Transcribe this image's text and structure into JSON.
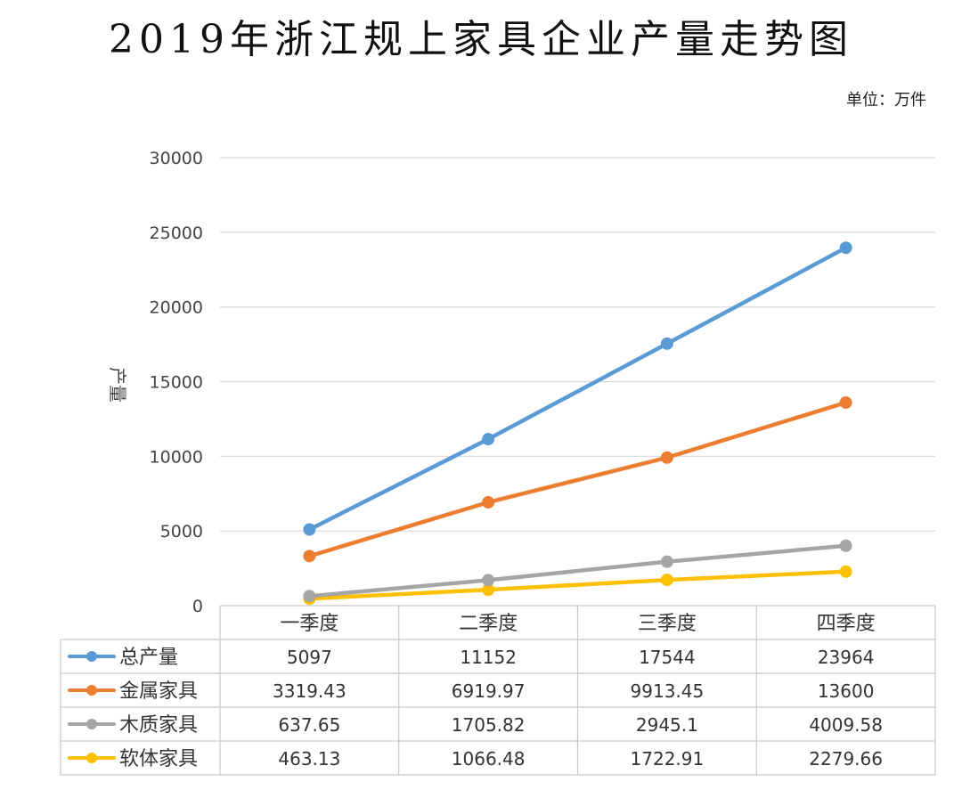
{
  "chart_data": {
    "type": "line",
    "title": "2019年浙江规上家具企业产量走势图",
    "unit_label": "单位：万件",
    "ylabel": "产量",
    "xlabel": "",
    "ylim": [
      0,
      30000
    ],
    "yticks": [
      "0",
      "5000",
      "10000",
      "15000",
      "20000",
      "25000",
      "30000"
    ],
    "ytick_values": [
      0,
      5000,
      10000,
      15000,
      20000,
      25000,
      30000
    ],
    "grid": true,
    "legend": "data-table-left",
    "categories": [
      "一季度",
      "二季度",
      "三季度",
      "四季度"
    ],
    "series": [
      {
        "name": "总产量",
        "color": "#5B9BD5",
        "values": [
          5097,
          11152,
          17544,
          23964
        ],
        "labels": [
          "5097",
          "11152",
          "17544",
          "23964"
        ]
      },
      {
        "name": "金属家具",
        "color": "#ED7D31",
        "values": [
          3319.43,
          6919.97,
          9913.45,
          13600
        ],
        "labels": [
          "3319.43",
          "6919.97",
          "9913.45",
          "13600"
        ]
      },
      {
        "name": "木质家具",
        "color": "#A5A5A5",
        "values": [
          637.65,
          1705.82,
          2945.1,
          4009.58
        ],
        "labels": [
          "637.65",
          "1705.82",
          "2945.1",
          "4009.58"
        ]
      },
      {
        "name": "软体家具",
        "color": "#FFC000",
        "values": [
          463.13,
          1066.48,
          1722.91,
          2279.66
        ],
        "labels": [
          "463.13",
          "1066.48",
          "1722.91",
          "2279.66"
        ]
      }
    ]
  }
}
